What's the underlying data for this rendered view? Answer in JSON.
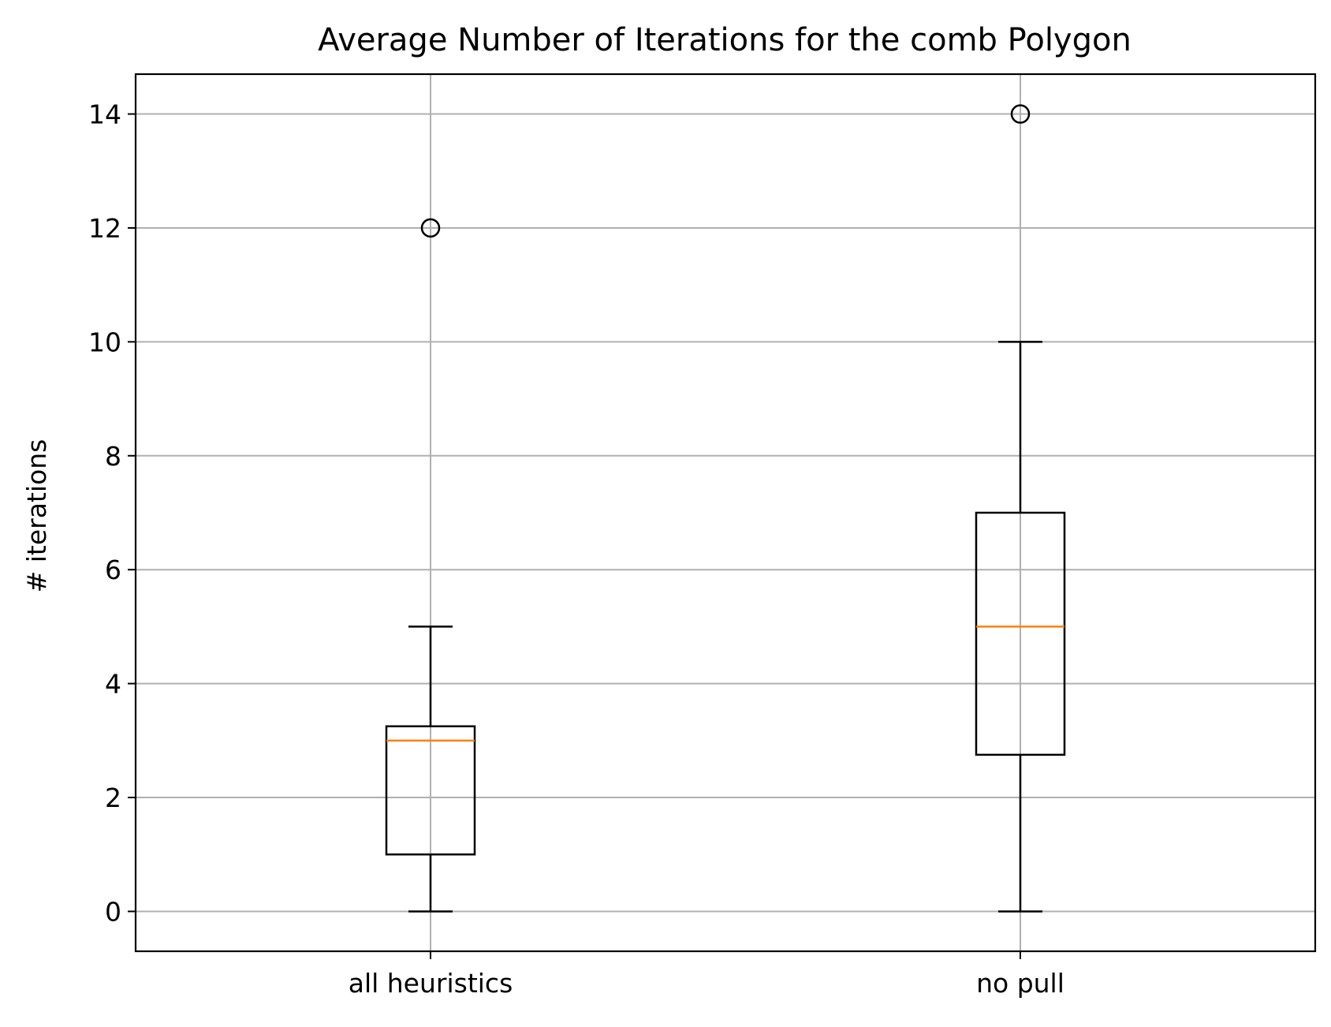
{
  "chart_data": {
    "type": "boxplot",
    "title": "Average Number of Iterations for the comb Polygon",
    "xlabel": "",
    "ylabel": "# iterations",
    "ylim": [
      -0.7,
      14.7
    ],
    "yticks": [
      0,
      2,
      4,
      6,
      8,
      10,
      12,
      14
    ],
    "grid": true,
    "categories": [
      "all heuristics",
      "no pull"
    ],
    "boxes": [
      {
        "category": "all heuristics",
        "whisker_low": 0,
        "q1": 1,
        "median": 3,
        "q3": 3.25,
        "whisker_high": 5,
        "outliers": [
          12
        ]
      },
      {
        "category": "no pull",
        "whisker_low": 0,
        "q1": 2.75,
        "median": 5,
        "q3": 7,
        "whisker_high": 10,
        "outliers": [
          14
        ]
      }
    ],
    "colors": {
      "box": "#000000",
      "median": "#ff7f0e",
      "grid": "#b0b0b0"
    }
  }
}
